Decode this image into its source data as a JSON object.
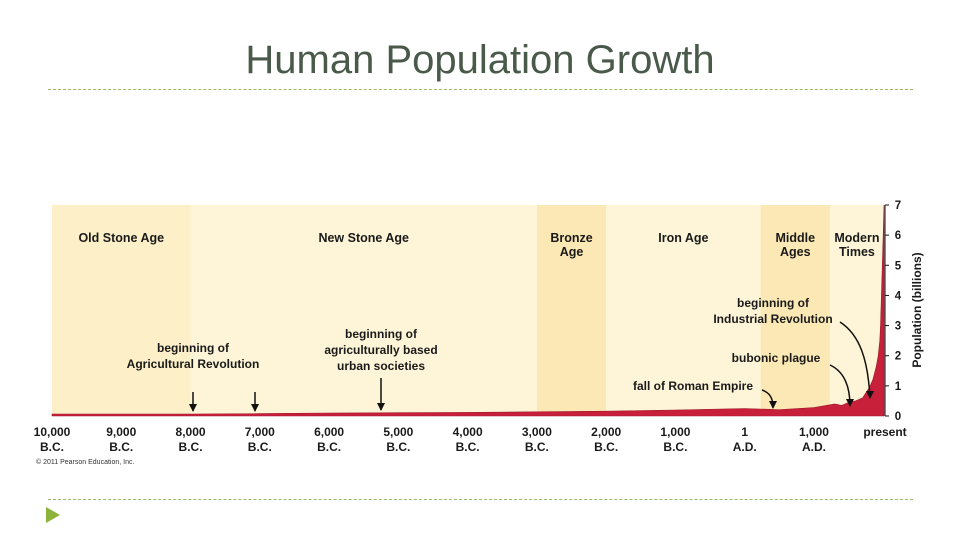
{
  "slide": {
    "title": "Human Population Growth"
  },
  "chart_data": {
    "type": "area",
    "ylabel": "Population (billions)",
    "ylim": [
      0,
      7
    ],
    "yticks": [
      "0",
      "1",
      "2",
      "3",
      "4",
      "5",
      "6",
      "7"
    ],
    "xlim": [
      -10000,
      2011
    ],
    "xticks": [
      {
        "x": -10000,
        "line1": "10,000",
        "line2": "B.C."
      },
      {
        "x": -9000,
        "line1": "9,000",
        "line2": "B.C."
      },
      {
        "x": -8000,
        "line1": "8,000",
        "line2": "B.C."
      },
      {
        "x": -7000,
        "line1": "7,000",
        "line2": "B.C."
      },
      {
        "x": -6000,
        "line1": "6,000",
        "line2": "B.C."
      },
      {
        "x": -5000,
        "line1": "5,000",
        "line2": "B.C."
      },
      {
        "x": -4000,
        "line1": "4,000",
        "line2": "B.C."
      },
      {
        "x": -3000,
        "line1": "3,000",
        "line2": "B.C."
      },
      {
        "x": -2000,
        "line1": "2,000",
        "line2": "B.C."
      },
      {
        "x": -1000,
        "line1": "1,000",
        "line2": "B.C."
      },
      {
        "x": 1,
        "line1": "1",
        "line2": "A.D."
      },
      {
        "x": 1000,
        "line1": "1,000",
        "line2": "A.D."
      },
      {
        "x": 2011,
        "line1": "present",
        "line2": ""
      }
    ],
    "eras": [
      {
        "name": "Old Stone Age",
        "line2": "",
        "start": -10000,
        "end": -8000,
        "color": "#fdf0c8"
      },
      {
        "name": "New Stone Age",
        "line2": "",
        "start": -8000,
        "end": -3000,
        "color": "#fef5d8"
      },
      {
        "name": "Bronze",
        "line2": "Age",
        "start": -3000,
        "end": -2000,
        "color": "#fbe8b4"
      },
      {
        "name": "Iron Age",
        "line2": "",
        "start": -2000,
        "end": 230,
        "color": "#fef5d8"
      },
      {
        "name": "Middle",
        "line2": "Ages",
        "start": 230,
        "end": 1230,
        "color": "#fbe8b4"
      },
      {
        "name": "Modern",
        "line2": "Times",
        "start": 1230,
        "end": 2011,
        "color": "#fef5d8"
      }
    ],
    "series": [
      {
        "x": [
          -10000,
          -9000,
          -8000,
          -7000,
          -6000,
          -5000,
          -4000,
          -3000,
          -2000,
          -1000,
          0,
          500,
          1000,
          1300,
          1400,
          1500,
          1600,
          1700,
          1800,
          1850,
          1900,
          1927,
          1950,
          1960,
          1974,
          1987,
          1999,
          2011
        ],
        "y": [
          0.005,
          0.006,
          0.06,
          0.08,
          0.1,
          0.11,
          0.12,
          0.14,
          0.16,
          0.2,
          0.25,
          0.21,
          0.28,
          0.4,
          0.35,
          0.45,
          0.5,
          0.6,
          0.95,
          1.2,
          1.65,
          2.0,
          2.5,
          3.0,
          4.0,
          5.0,
          6.0,
          7.0
        ],
        "color": "#c8203a"
      }
    ],
    "annotations": [
      {
        "lines": [
          "beginning of",
          "Agricultural Revolution"
        ],
        "x": -8000,
        "arrow": "straight"
      },
      {
        "lines": [
          "beginning of",
          "agriculturally based",
          "urban societies"
        ],
        "x": -5300,
        "arrow": "straight"
      },
      {
        "lines": [
          "beginning of",
          "Industrial Revolution"
        ],
        "x": 1800,
        "arrow": "curve-long"
      },
      {
        "lines": [
          "bubonic plague"
        ],
        "x": 1350,
        "arrow": "curve"
      },
      {
        "lines": [
          "fall of Roman Empire"
        ],
        "x": 476,
        "arrow": "curve-short"
      }
    ],
    "credit": "© 2011 Pearson Education, Inc."
  }
}
